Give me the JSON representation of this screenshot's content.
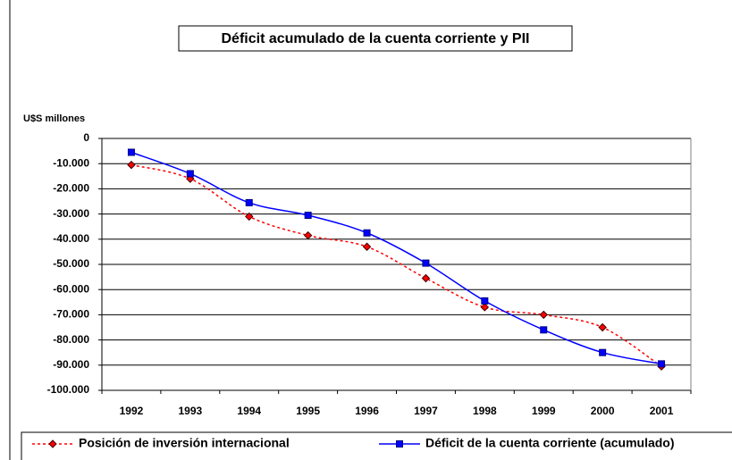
{
  "chart_data": {
    "type": "line",
    "title": "Déficit acumulado de la cuenta corriente y PII",
    "y_label": "U$S millones",
    "categories": [
      "1992",
      "1993",
      "1994",
      "1995",
      "1996",
      "1997",
      "1998",
      "1999",
      "2000",
      "2001"
    ],
    "series": [
      {
        "name": "Posición de inversión internacional",
        "color": "#ff0000",
        "values": [
          -10500,
          -16000,
          -31000,
          -38500,
          -43000,
          -55500,
          -67000,
          -70000,
          -75000,
          -90500
        ]
      },
      {
        "name": "Déficit de la cuenta corriente (acumulado)",
        "color": "#0000ff",
        "values": [
          -5500,
          -14000,
          -25500,
          -30500,
          -37500,
          -49500,
          -64500,
          -76000,
          -85000,
          -89500
        ]
      }
    ],
    "ylim": [
      -100000,
      0
    ],
    "yticks": [
      0,
      {
        "value": -10000,
        "label": "-10.000"
      },
      {
        "value": -20000,
        "label": "-20.000"
      },
      {
        "value": -30000,
        "label": "-30.000"
      },
      {
        "value": -40000,
        "label": "-40.000"
      },
      {
        "value": -50000,
        "label": "-50.000"
      },
      {
        "value": -60000,
        "label": "-60.000"
      },
      {
        "value": -70000,
        "label": "-70.000"
      },
      {
        "value": -80000,
        "label": "-80.000"
      },
      {
        "value": -90000,
        "label": "-90.000"
      },
      {
        "value": -100000,
        "label": "-100.000"
      }
    ],
    "grid": true
  }
}
